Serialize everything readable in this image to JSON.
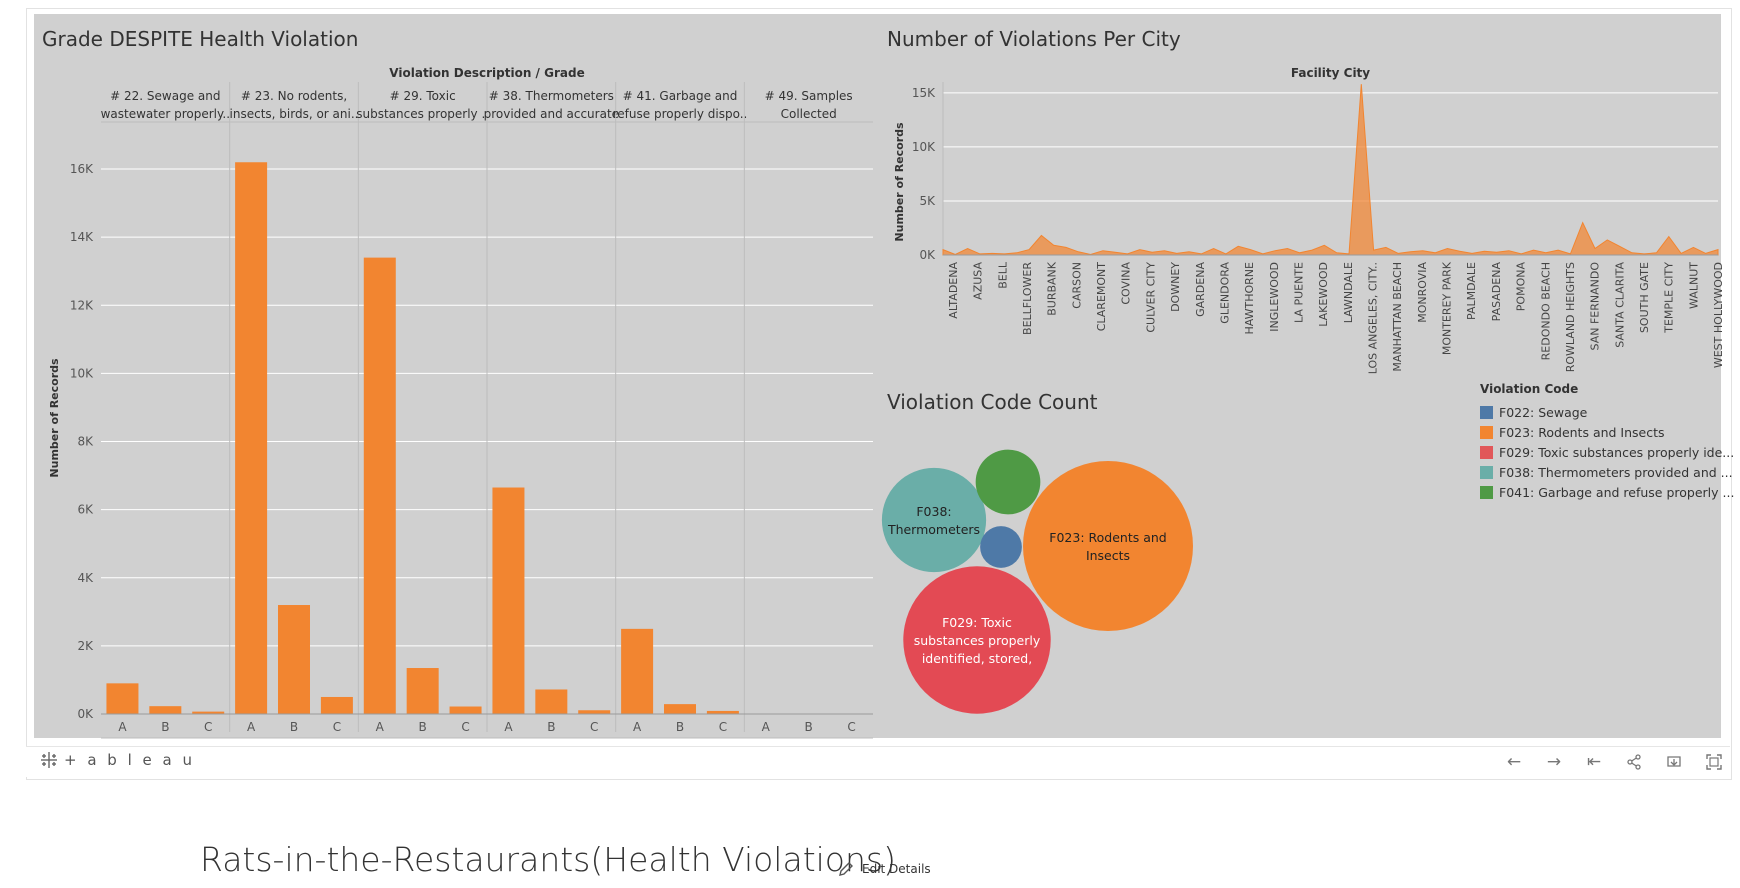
{
  "dashboard": {
    "grade_chart": {
      "title": "Grade DESPITE Health Violation",
      "header": "Violation Description  /  Grade",
      "ylabel": "Number of Records"
    },
    "city_chart": {
      "title": "Number of Violations Per City",
      "header": "Facility City",
      "ylabel": "Number of Records"
    },
    "bubble_chart": {
      "title": "Violation Code Count",
      "legend_title": "Violation Code"
    }
  },
  "chart_data": [
    {
      "type": "bar",
      "title": "Grade DESPITE Health Violation",
      "ylabel": "Number of Records",
      "y_ticks": [
        "0K",
        "2K",
        "4K",
        "6K",
        "8K",
        "10K",
        "12K",
        "14K",
        "16K"
      ],
      "ylim": [
        0,
        17000
      ],
      "groups": [
        {
          "label_line1": "# 22. Sewage and",
          "label_line2": "wastewater properly..",
          "grades": [
            "A",
            "B",
            "C"
          ],
          "values": [
            900,
            230,
            70
          ]
        },
        {
          "label_line1": "# 23. No rodents,",
          "label_line2": "insects, birds, or ani..",
          "grades": [
            "A",
            "B",
            "C"
          ],
          "values": [
            16200,
            3200,
            500
          ]
        },
        {
          "label_line1": "# 29. Toxic",
          "label_line2": "substances properly ..",
          "grades": [
            "A",
            "B",
            "C"
          ],
          "values": [
            13400,
            1350,
            220
          ]
        },
        {
          "label_line1": "# 38. Thermometers",
          "label_line2": "provided and accurate",
          "grades": [
            "A",
            "B",
            "C"
          ],
          "values": [
            6650,
            720,
            110
          ]
        },
        {
          "label_line1": "# 41. Garbage and",
          "label_line2": "refuse properly dispo..",
          "grades": [
            "A",
            "B",
            "C"
          ],
          "values": [
            2500,
            290,
            90
          ]
        },
        {
          "label_line1": "# 49. Samples",
          "label_line2": "Collected",
          "grades": [
            "A",
            "B",
            "C"
          ],
          "values": [
            0,
            0,
            0
          ]
        }
      ],
      "color": "#f28530"
    },
    {
      "type": "area",
      "title": "Number of Violations Per City",
      "header": "Facility City",
      "ylabel": "Number of Records",
      "y_ticks": [
        "0K",
        "5K",
        "10K",
        "15K"
      ],
      "ylim": [
        0,
        16000
      ],
      "tick_labels": [
        "ALTADENA",
        "AZUSA",
        "BELL",
        "BELLFLOWER",
        "BURBANK",
        "CARSON",
        "CLAREMONT",
        "COVINA",
        "CULVER CITY",
        "DOWNEY",
        "GARDENA",
        "GLENDORA",
        "HAWTHORNE",
        "INGLEWOOD",
        "LA PUENTE",
        "LAKEWOOD",
        "LAWNDALE",
        "LOS ANGELES, CITY..",
        "MANHATTAN BEACH",
        "MONROVIA",
        "MONTEREY PARK",
        "PALMDALE",
        "PASADENA",
        "POMONA",
        "REDONDO BEACH",
        "ROWLAND HEIGHTS",
        "SAN FERNANDO",
        "SANTA CLARITA",
        "SOUTH GATE",
        "TEMPLE CITY",
        "WALNUT",
        "WEST HOLLYWOOD"
      ],
      "values": [
        500,
        50,
        600,
        100,
        150,
        100,
        200,
        500,
        1800,
        900,
        700,
        300,
        50,
        400,
        250,
        100,
        500,
        250,
        400,
        150,
        300,
        100,
        600,
        100,
        800,
        500,
        100,
        400,
        600,
        200,
        450,
        900,
        200,
        100,
        15800,
        450,
        700,
        150,
        300,
        400,
        200,
        600,
        350,
        150,
        350,
        250,
        400,
        100,
        450,
        200,
        450,
        100,
        3000,
        600,
        1400,
        800,
        200,
        100,
        200,
        1700,
        150,
        700,
        150,
        500
      ],
      "color": "#f28530"
    },
    {
      "type": "bubble",
      "title": "Violation Code Count",
      "legend": [
        {
          "name": "F022: Sewage",
          "color": "#4e79a7"
        },
        {
          "name": "F023: Rodents and Insects",
          "color": "#f28530"
        },
        {
          "name": "F029: Toxic substances properly ide...",
          "color": "#e15759"
        },
        {
          "name": "F038: Thermometers provided and ...",
          "color": "#6aaea8"
        },
        {
          "name": "F041: Garbage and refuse properly ...",
          "color": "#4f9a45"
        }
      ],
      "bubbles": [
        {
          "code": "F023",
          "value": 19900,
          "label_lines": [
            "F023: Rodents and",
            "Insects"
          ],
          "color": "#f28530",
          "text_color": "#222222"
        },
        {
          "code": "F029",
          "value": 14970,
          "label_lines": [
            "F029: Toxic",
            "substances properly",
            "identified, stored,"
          ],
          "color": "#e34a54",
          "text_color": "#ffffff"
        },
        {
          "code": "F038",
          "value": 7480,
          "label_lines": [
            "F038:",
            "Thermometers"
          ],
          "color": "#6aaea8",
          "text_color": "#222222"
        },
        {
          "code": "F041",
          "value": 2880,
          "label_lines": [],
          "color": "#4f9a45",
          "text_color": "#ffffff"
        },
        {
          "code": "F022",
          "value": 1200,
          "label_lines": [],
          "color": "#4e79a7",
          "text_color": "#ffffff"
        }
      ]
    }
  ],
  "toolbar": {
    "brand": "+ a b l e a u"
  },
  "page": {
    "title": "Rats-in-the-Restaurants(Health Violations)",
    "edit_label": "Edit Details"
  }
}
